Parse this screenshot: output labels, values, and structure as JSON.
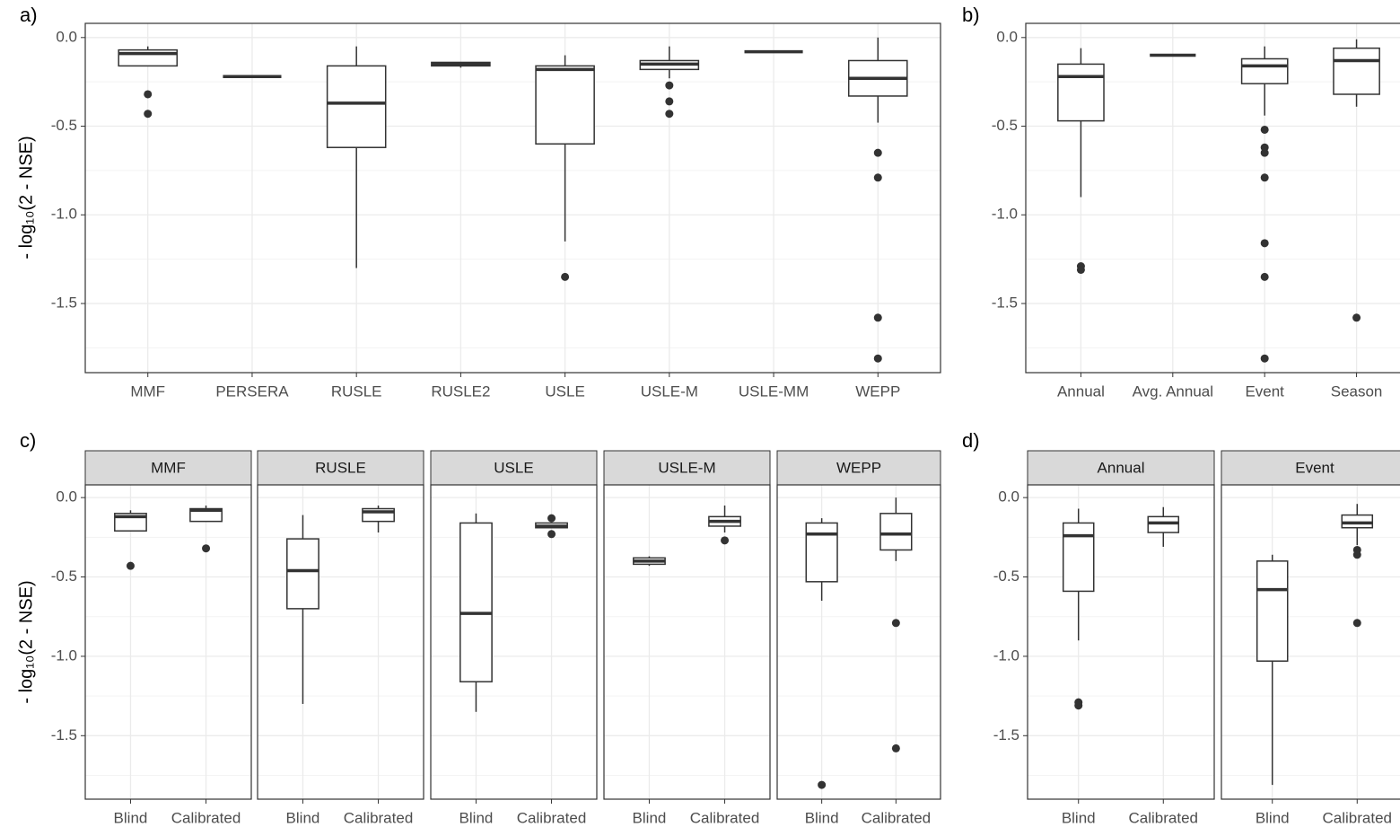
{
  "chart_data": [
    {
      "type": "box",
      "label": "a)",
      "ylabel": "- log₁₀(2 - NSE)",
      "categories": [
        "MMF",
        "PERSERA",
        "RUSLE",
        "RUSLE2",
        "USLE",
        "USLE-M",
        "USLE-MM",
        "WEPP"
      ],
      "boxes": [
        {
          "min": -0.16,
          "q1": -0.16,
          "median": -0.09,
          "q3": -0.07,
          "max": -0.05,
          "outliers": [
            -0.32,
            -0.43
          ]
        },
        {
          "min": -0.22,
          "q1": -0.22,
          "median": -0.22,
          "q3": -0.22,
          "max": -0.22
        },
        {
          "min": -1.3,
          "q1": -0.62,
          "median": -0.37,
          "q3": -0.16,
          "max": -0.05
        },
        {
          "min": -0.17,
          "q1": -0.16,
          "median": -0.15,
          "q3": -0.14,
          "max": -0.14
        },
        {
          "min": -1.15,
          "q1": -0.6,
          "median": -0.18,
          "q3": -0.16,
          "max": -0.1,
          "outliers": [
            -1.35
          ]
        },
        {
          "min": -0.23,
          "q1": -0.18,
          "median": -0.15,
          "q3": -0.13,
          "max": -0.05,
          "outliers": [
            -0.27,
            -0.36,
            -0.43
          ]
        },
        {
          "min": -0.08,
          "q1": -0.08,
          "median": -0.08,
          "q3": -0.08,
          "max": -0.08
        },
        {
          "min": -0.48,
          "q1": -0.33,
          "median": -0.23,
          "q3": -0.13,
          "max": 0.0,
          "outliers": [
            -0.65,
            -0.79,
            -1.58,
            -1.81
          ]
        }
      ],
      "ylim": [
        -1.89,
        0.08
      ],
      "yticks": [
        {
          "value": 0,
          "label": "0.0"
        },
        -0.5,
        {
          "value": -1,
          "label": "-1.0"
        },
        -1.5
      ],
      "grid": true
    },
    {
      "type": "box",
      "label": "b)",
      "categories": [
        "Annual",
        "Avg. Annual",
        "Event",
        "Season"
      ],
      "boxes": [
        {
          "min": -0.9,
          "q1": -0.47,
          "median": -0.22,
          "q3": -0.15,
          "max": -0.06,
          "outliers": [
            -1.29,
            -1.31
          ]
        },
        {
          "min": -0.1,
          "q1": -0.1,
          "median": -0.1,
          "q3": -0.1,
          "max": -0.1
        },
        {
          "min": -0.44,
          "q1": -0.26,
          "median": -0.16,
          "q3": -0.12,
          "max": -0.05,
          "outliers": [
            -0.52,
            -0.62,
            -0.65,
            -0.79,
            -1.16,
            -1.35,
            -1.81
          ]
        },
        {
          "min": -0.39,
          "q1": -0.32,
          "median": -0.13,
          "q3": -0.06,
          "max": -0.01,
          "outliers": [
            -1.58
          ]
        }
      ],
      "ylim": [
        -1.89,
        0.08
      ],
      "yticks": [
        {
          "value": 0,
          "label": "0.0"
        },
        -0.5,
        {
          "value": -1,
          "label": "-1.0"
        },
        -1.5
      ],
      "grid": true
    },
    {
      "type": "box",
      "label": "c)",
      "ylabel": "- log₁₀(2 - NSE)",
      "facets": [
        {
          "name": "MMF",
          "categories": [
            "Blind",
            "Calibrated"
          ],
          "boxes": [
            {
              "min": -0.21,
              "q1": -0.21,
              "median": -0.12,
              "q3": -0.1,
              "max": -0.08,
              "outliers": [
                -0.43
              ]
            },
            {
              "min": -0.15,
              "q1": -0.15,
              "median": -0.08,
              "q3": -0.07,
              "max": -0.05,
              "outliers": [
                -0.32
              ]
            }
          ]
        },
        {
          "name": "RUSLE",
          "categories": [
            "Blind",
            "Calibrated"
          ],
          "boxes": [
            {
              "min": -1.3,
              "q1": -0.7,
              "median": -0.46,
              "q3": -0.26,
              "max": -0.11
            },
            {
              "min": -0.22,
              "q1": -0.15,
              "median": -0.09,
              "q3": -0.07,
              "max": -0.05
            }
          ]
        },
        {
          "name": "USLE",
          "categories": [
            "Blind",
            "Calibrated"
          ],
          "boxes": [
            {
              "min": -1.35,
              "q1": -1.16,
              "median": -0.73,
              "q3": -0.16,
              "max": -0.1
            },
            {
              "min": -0.19,
              "q1": -0.19,
              "median": -0.18,
              "q3": -0.16,
              "max": -0.16,
              "outliers": [
                -0.13,
                -0.23
              ]
            }
          ]
        },
        {
          "name": "USLE-M",
          "categories": [
            "Blind",
            "Calibrated"
          ],
          "boxes": [
            {
              "min": -0.43,
              "q1": -0.42,
              "median": -0.4,
              "q3": -0.38,
              "max": -0.37
            },
            {
              "min": -0.22,
              "q1": -0.18,
              "median": -0.15,
              "q3": -0.12,
              "max": -0.05,
              "outliers": [
                -0.27
              ]
            }
          ]
        },
        {
          "name": "WEPP",
          "categories": [
            "Blind",
            "Calibrated"
          ],
          "boxes": [
            {
              "min": -0.65,
              "q1": -0.53,
              "median": -0.23,
              "q3": -0.16,
              "max": -0.13,
              "outliers": [
                -1.81
              ]
            },
            {
              "min": -0.4,
              "q1": -0.33,
              "median": -0.23,
              "q3": -0.1,
              "max": 0.0,
              "outliers": [
                -0.79,
                -1.58
              ]
            }
          ]
        }
      ],
      "ylim": [
        -1.9,
        0.08
      ],
      "yticks": [
        {
          "value": 0,
          "label": "0.0"
        },
        -0.5,
        {
          "value": -1,
          "label": "-1.0"
        },
        -1.5
      ],
      "grid": true
    },
    {
      "type": "box",
      "label": "d)",
      "facets": [
        {
          "name": "Annual",
          "categories": [
            "Blind",
            "Calibrated"
          ],
          "boxes": [
            {
              "min": -0.9,
              "q1": -0.59,
              "median": -0.24,
              "q3": -0.16,
              "max": -0.07,
              "outliers": [
                -1.29,
                -1.31
              ]
            },
            {
              "min": -0.31,
              "q1": -0.22,
              "median": -0.16,
              "q3": -0.12,
              "max": -0.06
            }
          ]
        },
        {
          "name": "Event",
          "categories": [
            "Blind",
            "Calibrated"
          ],
          "boxes": [
            {
              "min": -1.81,
              "q1": -1.03,
              "median": -0.58,
              "q3": -0.4,
              "max": -0.36
            },
            {
              "min": -0.3,
              "q1": -0.19,
              "median": -0.16,
              "q3": -0.11,
              "max": -0.04,
              "outliers": [
                -0.33,
                -0.36,
                -0.79
              ]
            }
          ]
        }
      ],
      "ylim": [
        -1.9,
        0.08
      ],
      "yticks": [
        {
          "value": 0,
          "label": "0.0"
        },
        -0.5,
        {
          "value": -1,
          "label": "-1.0"
        },
        -1.5
      ],
      "grid": true
    }
  ]
}
